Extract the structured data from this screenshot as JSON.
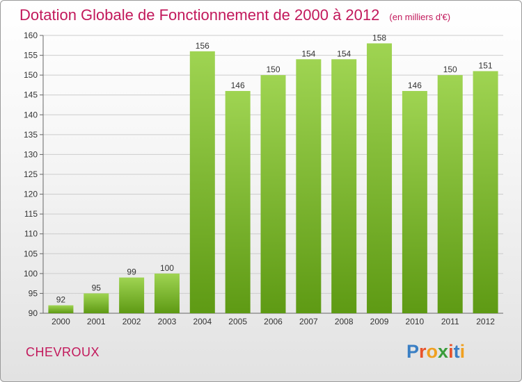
{
  "title": "Dotation Globale de Fonctionnement de 2000 à 2012",
  "unit_label": "(en milliers d'€)",
  "commune": "CHEVROUX",
  "logo": {
    "letters": [
      "P",
      "r",
      "o",
      "x",
      "i",
      "t",
      "i"
    ],
    "colors": [
      "#3a7fc4",
      "#e8532b",
      "#f0a020",
      "#3a9c3a",
      "#e8532b",
      "#3a7fc4",
      "#f0a020"
    ]
  },
  "colors": {
    "bar_top": "#9fd452",
    "bar_bottom": "#5e9a14",
    "grid": "#cccccc",
    "title": "#c2185b"
  },
  "chart_data": {
    "type": "bar",
    "title": "Dotation Globale de Fonctionnement de 2000 à 2012",
    "categories": [
      "2000",
      "2001",
      "2002",
      "2003",
      "2004",
      "2005",
      "2006",
      "2007",
      "2008",
      "2009",
      "2010",
      "2011",
      "2012"
    ],
    "values": [
      92,
      95,
      99,
      100,
      156,
      146,
      150,
      154,
      154,
      158,
      146,
      150,
      151
    ],
    "ylim": [
      90,
      160
    ],
    "yticks": [
      90,
      95,
      100,
      105,
      110,
      115,
      120,
      125,
      130,
      135,
      140,
      145,
      150,
      155,
      160
    ],
    "xlabel": "",
    "ylabel": "",
    "grid": true
  }
}
